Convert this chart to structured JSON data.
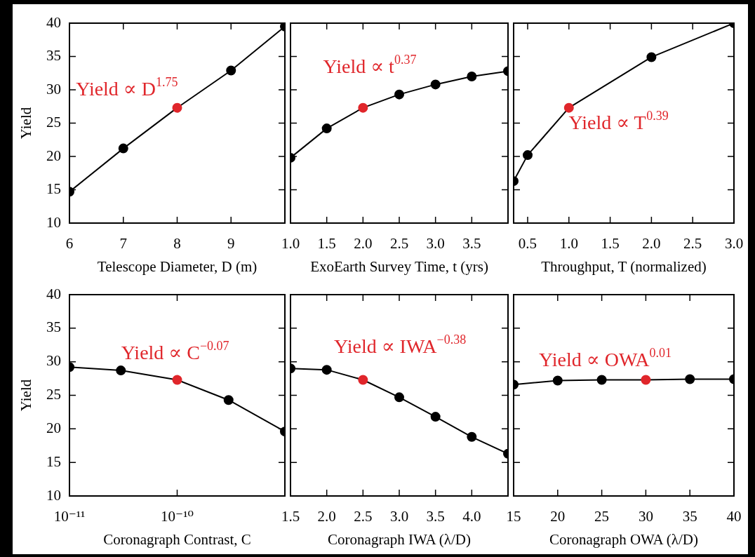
{
  "chart_data": [
    {
      "type": "line",
      "xlabel": "Telescope Diameter, D (m)",
      "ylabel": "Yield",
      "x": [
        6,
        7,
        8,
        9,
        10
      ],
      "series": [
        {
          "color": "#000000",
          "colors": [
            "#000000",
            "#000000",
            "#e0262b",
            "#000000",
            "#000000"
          ],
          "values": [
            14.7,
            21.2,
            27.3,
            32.9,
            39.5
          ]
        }
      ],
      "xlim": [
        6,
        10
      ],
      "xticks": [
        6,
        7,
        8,
        9,
        {
          "value": 10,
          "label": null
        }
      ],
      "ylim": [
        10,
        40
      ],
      "yticks": [
        10,
        15,
        20,
        25,
        30,
        35,
        40
      ],
      "grid": false,
      "marker": "circle",
      "line_style": "solid",
      "annotations": [
        "Yield ∝ D$^{1.75}$"
      ]
    },
    {
      "type": "line",
      "xlabel": "ExoEarth Survey Time, t (yrs)",
      "x": [
        1,
        1.5,
        2,
        2.5,
        3,
        3.5,
        4
      ],
      "series": [
        {
          "color": "#000000",
          "colors": [
            "#000000",
            "#000000",
            "#e0262b",
            "#000000",
            "#000000",
            "#000000",
            "#000000"
          ],
          "values": [
            19.8,
            24.2,
            27.3,
            29.3,
            30.8,
            32.0,
            32.8
          ]
        }
      ],
      "xlim": [
        1,
        4
      ],
      "xticks": [
        {
          "value": 1,
          "label": "1.0"
        },
        1.5,
        {
          "value": 2,
          "label": "2.0"
        },
        2.5,
        {
          "value": 3,
          "label": "3.0"
        },
        3.5,
        {
          "value": 4,
          "label": null
        }
      ],
      "ylim": [
        10,
        40
      ],
      "yticks": [
        10,
        15,
        20,
        25,
        30,
        35,
        40
      ],
      "tick_labels": "x",
      "grid": false,
      "marker": "circle",
      "line_style": "solid",
      "annotations": [
        "Yield ∝ t$^{0.37}$"
      ]
    },
    {
      "type": "line",
      "xlabel": "Throughput, T (normalized)",
      "x": [
        0.33,
        0.5,
        1,
        2,
        3
      ],
      "series": [
        {
          "color": "#000000",
          "colors": [
            "#000000",
            "#000000",
            "#e0262b",
            "#000000",
            "#000000"
          ],
          "values": [
            16.3,
            20.2,
            27.3,
            34.9,
            40
          ]
        }
      ],
      "xlim": [
        0.33,
        3
      ],
      "xticks": [
        0.5,
        {
          "value": 1,
          "label": "1.0"
        },
        1.5,
        {
          "value": 2,
          "label": "2.0"
        },
        2.5,
        {
          "value": 3,
          "label": "3.0"
        }
      ],
      "ylim": [
        10,
        40
      ],
      "yticks": [
        10,
        15,
        20,
        25,
        30,
        35,
        40
      ],
      "tick_labels": "x",
      "grid": false,
      "marker": "circle",
      "line_style": "solid",
      "annotations": [
        "Yield ∝ T$^{0.39}$"
      ]
    },
    {
      "type": "line",
      "xlabel": "Coronagraph Contrast, C",
      "ylabel": "Yield",
      "log": "x",
      "x": [
        1e-11,
        3e-11,
        1e-10,
        3e-10,
        1e-09
      ],
      "series": [
        {
          "color": "#000000",
          "colors": [
            "#000000",
            "#000000",
            "#e0262b",
            "#000000",
            "#000000"
          ],
          "values": [
            29.2,
            28.7,
            27.3,
            24.3,
            19.6
          ]
        }
      ],
      "xlim": [
        1e-11,
        1e-09
      ],
      "xticks": [
        {
          "value": 1e-11,
          "label": "10⁻¹¹"
        },
        {
          "value": 1e-10,
          "label": "10⁻¹⁰"
        },
        {
          "value": 1e-09,
          "label": null
        }
      ],
      "ylim": [
        10,
        40
      ],
      "yticks": [
        10,
        15,
        20,
        25,
        30,
        35,
        40
      ],
      "grid": false,
      "marker": "circle",
      "line_style": "solid",
      "annotations": [
        "Yield ∝ C$^{−0.07}$"
      ]
    },
    {
      "type": "line",
      "xlabel": "Coronagraph IWA (λ/D)",
      "x": [
        1.5,
        2,
        2.5,
        3,
        3.5,
        4,
        4.5
      ],
      "series": [
        {
          "color": "#000000",
          "colors": [
            "#000000",
            "#000000",
            "#e0262b",
            "#000000",
            "#000000",
            "#000000",
            "#000000"
          ],
          "values": [
            29.0,
            28.8,
            27.3,
            24.7,
            21.8,
            18.8,
            16.3
          ]
        }
      ],
      "xlim": [
        1.5,
        4.5
      ],
      "xticks": [
        1.5,
        {
          "value": 2,
          "label": "2.0"
        },
        2.5,
        {
          "value": 3,
          "label": "3.0"
        },
        3.5,
        {
          "value": 4,
          "label": "4.0"
        },
        {
          "value": 4.5,
          "label": null
        }
      ],
      "ylim": [
        10,
        40
      ],
      "yticks": [
        10,
        15,
        20,
        25,
        30,
        35,
        40
      ],
      "tick_labels": "x",
      "grid": false,
      "marker": "circle",
      "line_style": "solid",
      "annotations": [
        "Yield ∝ IWA$^{−0.38}$"
      ]
    },
    {
      "type": "line",
      "xlabel": "Coronagraph OWA (λ/D)",
      "x": [
        15,
        20,
        25,
        30,
        35,
        40
      ],
      "series": [
        {
          "color": "#000000",
          "colors": [
            "#000000",
            "#000000",
            "#000000",
            "#e0262b",
            "#000000",
            "#000000"
          ],
          "values": [
            26.6,
            27.2,
            27.3,
            27.3,
            27.4,
            27.4
          ]
        }
      ],
      "xlim": [
        15,
        40
      ],
      "xticks": [
        15,
        20,
        25,
        30,
        35,
        40
      ],
      "ylim": [
        10,
        40
      ],
      "yticks": [
        10,
        15,
        20,
        25,
        30,
        35,
        40
      ],
      "tick_labels": "x",
      "grid": false,
      "marker": "circle",
      "line_style": "solid",
      "annotations": [
        "Yield ∝ OWA$^{0.01}$"
      ]
    }
  ]
}
